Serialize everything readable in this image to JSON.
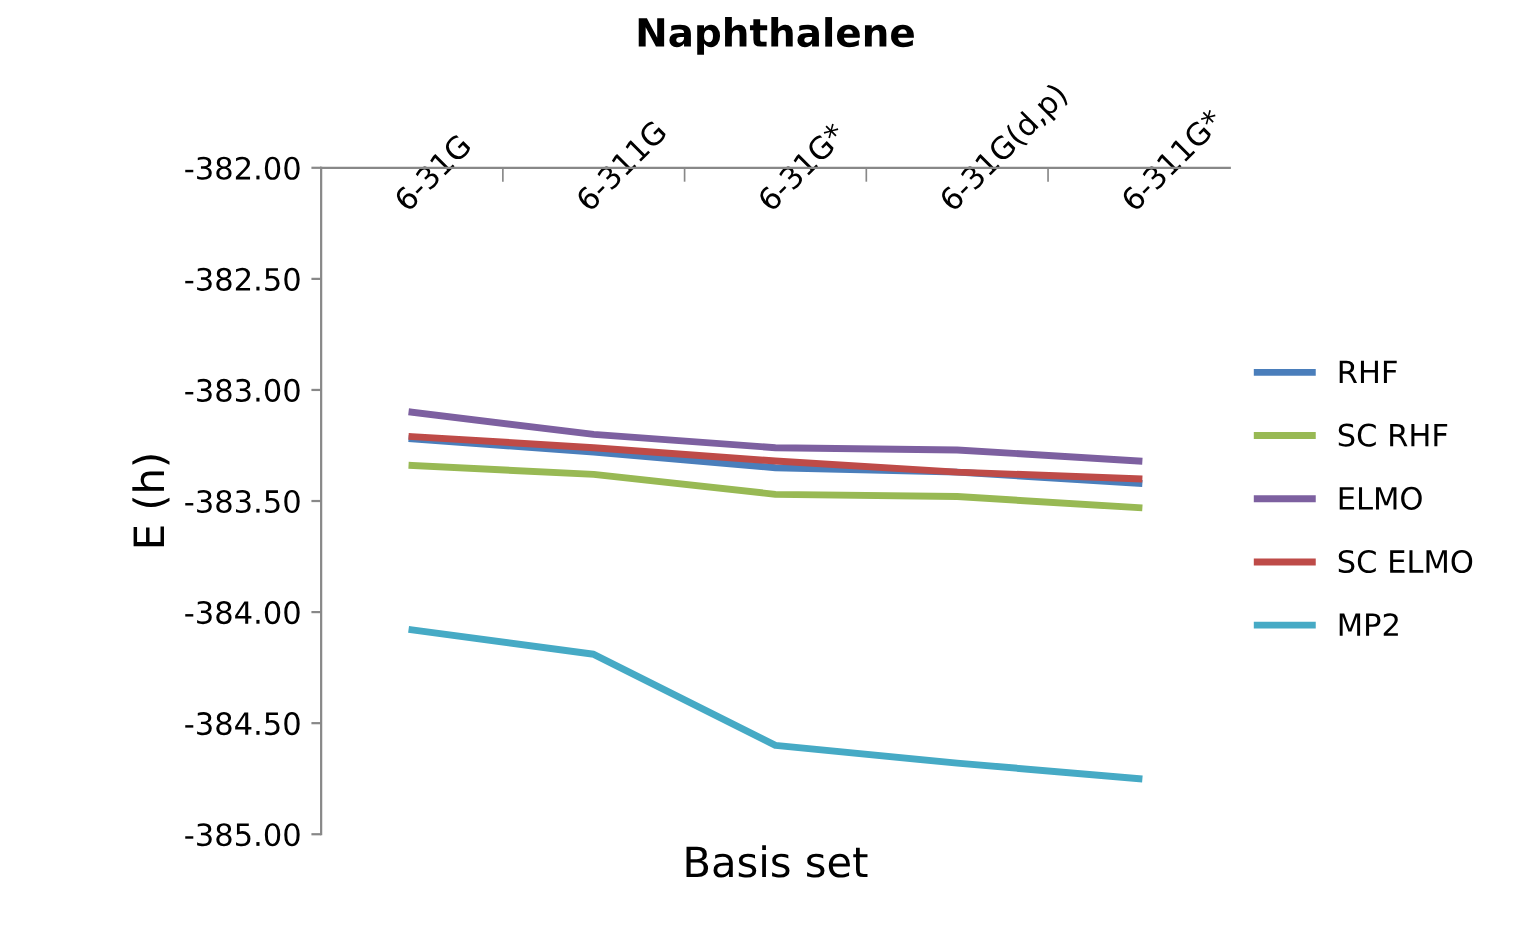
{
  "chart_data": {
    "type": "line",
    "title": "Naphthalene",
    "xlabel": "Basis set",
    "ylabel": "E (h)",
    "categories": [
      "6-31G",
      "6-311G",
      "6-31G*",
      "6-31G(d,p)",
      "6-311G*"
    ],
    "series": [
      {
        "name": "RHF",
        "color": "#4a7ebb",
        "values": [
          -383.22,
          -383.28,
          -383.35,
          -383.37,
          -383.42
        ]
      },
      {
        "name": "SC RHF",
        "color": "#98b954",
        "values": [
          -383.34,
          -383.38,
          -383.47,
          -383.48,
          -383.53
        ]
      },
      {
        "name": "ELMO",
        "color": "#7d60a0",
        "values": [
          -383.1,
          -383.2,
          -383.26,
          -383.27,
          -383.32
        ]
      },
      {
        "name": "SC ELMO",
        "color": "#be4b48",
        "values": [
          -383.21,
          -383.26,
          -383.32,
          -383.37,
          -383.4
        ]
      },
      {
        "name": "MP2",
        "color": "#46aac5",
        "values": [
          -384.08,
          -384.19,
          -384.6,
          -384.68,
          -384.75
        ]
      }
    ],
    "ylim": [
      -385,
      -382
    ],
    "yticks": [
      {
        "value": -382,
        "label": "-382.00"
      },
      {
        "value": -382.5,
        "label": "-382.50"
      },
      {
        "value": -383,
        "label": "-383.00"
      },
      {
        "value": -383.5,
        "label": "-383.50"
      },
      {
        "value": -384,
        "label": "-384.00"
      },
      {
        "value": -384.5,
        "label": "-384.50"
      },
      {
        "value": -385,
        "label": "-385.00"
      }
    ],
    "grid": false,
    "legend": "right",
    "marker": "none",
    "line_style": "solid"
  }
}
